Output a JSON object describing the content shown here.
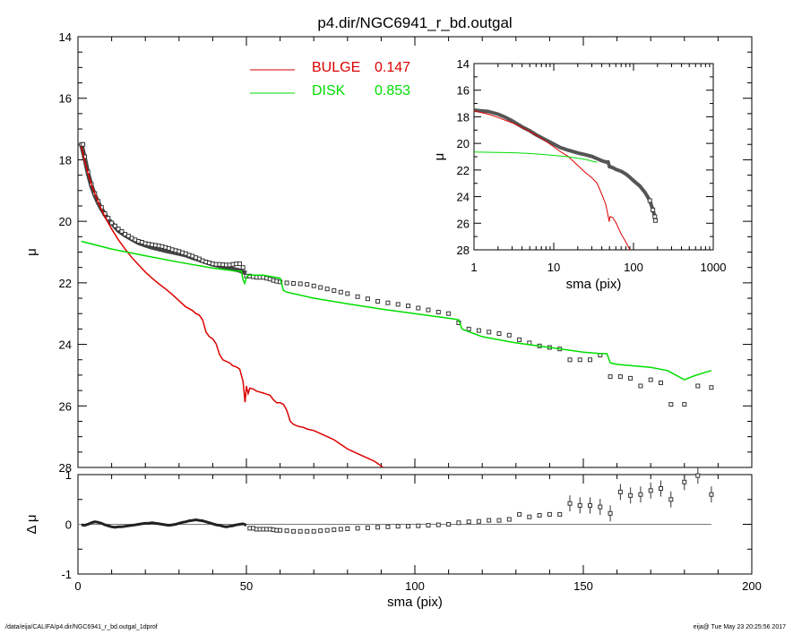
{
  "header": {
    "title": "p4.dir/NGC6941_r_bd.outgal"
  },
  "footer": {
    "path": "/data/eija/CALIFA/p4.dir/NGC6941_r_bd.outgal_1dprof",
    "stamp": "eija@  Tue May 23 20:25:56 2017"
  },
  "chart_data": [
    {
      "panel": "main",
      "type": "line",
      "title": "p4.dir/NGC6941_r_bd.outgal",
      "ylabel": "μ",
      "xlabel": "",
      "xlim": [
        0,
        200
      ],
      "ylim": [
        28,
        14
      ],
      "yaxis_inverted": true,
      "x_ticks": [
        0,
        50,
        100,
        150,
        200
      ],
      "y_ticks": [
        14,
        16,
        18,
        20,
        22,
        24,
        26,
        28
      ],
      "legend": {
        "position": "top-center",
        "items": [
          {
            "label": "BULGE",
            "value": "0.147",
            "color": "#dd0000"
          },
          {
            "label": "DISK",
            "value": "0.853",
            "color": "#00dd00"
          }
        ]
      },
      "series": [
        {
          "name": "BULGE",
          "kind": "line",
          "color": "#dd0000",
          "x": [
            1,
            2,
            3,
            4,
            5,
            6,
            7,
            8,
            9,
            10,
            12,
            14,
            16,
            18,
            20,
            22,
            24,
            26,
            28,
            30,
            32,
            33,
            34,
            35,
            36,
            37,
            38,
            39,
            40,
            41,
            42,
            43,
            44,
            45,
            46,
            47,
            48,
            49,
            49.6,
            50,
            50.5,
            51,
            52,
            53,
            54,
            55,
            56,
            57,
            58,
            59,
            60,
            61,
            62,
            63,
            64,
            65,
            66,
            67,
            68,
            70,
            72,
            74,
            76,
            78,
            80,
            82,
            84,
            86,
            88,
            90,
            91
          ],
          "y": [
            17.55,
            18.05,
            18.45,
            18.8,
            19.1,
            19.38,
            19.62,
            19.85,
            20.05,
            20.25,
            20.6,
            20.9,
            21.18,
            21.42,
            21.65,
            21.85,
            22.03,
            22.2,
            22.38,
            22.58,
            22.78,
            22.84,
            22.9,
            23.0,
            23.05,
            23.2,
            23.6,
            23.75,
            23.82,
            23.98,
            24.32,
            24.5,
            24.55,
            24.6,
            24.7,
            24.73,
            24.8,
            25.2,
            25.88,
            25.35,
            25.6,
            25.42,
            25.45,
            25.52,
            25.55,
            25.58,
            25.62,
            25.65,
            25.8,
            25.9,
            25.9,
            25.95,
            26.15,
            26.5,
            26.6,
            26.65,
            26.68,
            26.7,
            26.75,
            26.8,
            26.9,
            27.0,
            27.1,
            27.25,
            27.4,
            27.5,
            27.6,
            27.7,
            27.8,
            27.95,
            28.05
          ]
        },
        {
          "name": "DISK",
          "kind": "line",
          "color": "#00dd00",
          "x": [
            1,
            10,
            20,
            30,
            40,
            47,
            48.5,
            49,
            49.5,
            50,
            50.5,
            51,
            55,
            60,
            61,
            62,
            70,
            80,
            90,
            100,
            110,
            113,
            114,
            115,
            120,
            130,
            140,
            150,
            155,
            157,
            158,
            160,
            170,
            175,
            180,
            183,
            185,
            188
          ],
          "y": [
            20.65,
            20.9,
            21.12,
            21.33,
            21.52,
            21.62,
            21.62,
            21.9,
            22.02,
            21.82,
            21.75,
            21.75,
            21.75,
            21.85,
            22.25,
            22.3,
            22.5,
            22.68,
            22.85,
            23.0,
            23.15,
            23.2,
            23.5,
            23.55,
            23.75,
            23.95,
            24.1,
            24.25,
            24.3,
            24.3,
            24.6,
            24.65,
            24.75,
            24.85,
            25.15,
            25.02,
            24.95,
            24.85
          ]
        },
        {
          "name": "",
          "kind": "model",
          "color": "#555555",
          "x": [
            1,
            2,
            3,
            4,
            5,
            6,
            7,
            8,
            9,
            10,
            12,
            14,
            16,
            18,
            20,
            22,
            24,
            26,
            28,
            30,
            32,
            34,
            36,
            38,
            40,
            42,
            44,
            46,
            48,
            49,
            50
          ],
          "y": [
            17.5,
            17.95,
            18.45,
            18.85,
            19.15,
            19.4,
            19.6,
            19.78,
            19.95,
            20.05,
            20.3,
            20.45,
            20.58,
            20.7,
            20.78,
            20.85,
            20.9,
            20.96,
            21.0,
            21.05,
            21.1,
            21.18,
            21.25,
            21.33,
            21.4,
            21.45,
            21.5,
            21.55,
            21.6,
            21.65,
            21.68
          ]
        },
        {
          "name": "",
          "kind": "observed",
          "color": "#000000",
          "x": [
            1,
            1.5,
            2,
            3,
            4,
            5,
            6,
            7,
            8,
            9,
            10,
            11,
            12,
            13,
            14,
            15,
            16,
            17,
            18,
            19,
            20,
            21,
            22,
            23,
            24,
            25,
            26,
            27,
            28,
            29,
            30,
            31,
            32,
            33,
            34,
            35,
            36,
            37,
            38,
            39,
            40,
            41,
            42,
            43,
            44,
            45,
            46,
            47,
            48,
            49,
            50,
            51,
            52,
            53,
            54,
            55,
            56,
            57,
            58,
            59,
            60,
            62,
            64,
            66,
            68,
            70,
            72,
            74,
            76,
            78,
            80,
            83,
            86,
            89,
            92,
            95,
            98,
            101,
            104,
            107,
            110,
            113,
            116,
            119,
            122,
            125,
            128,
            131,
            134,
            137,
            140,
            143,
            146,
            149,
            152,
            155,
            158,
            161,
            164,
            167,
            170,
            173,
            176,
            180,
            184,
            188
          ],
          "y": [
            17.5,
            17.5,
            17.9,
            18.4,
            18.8,
            19.1,
            19.35,
            19.55,
            19.75,
            19.9,
            20.05,
            20.15,
            20.25,
            20.33,
            20.42,
            20.48,
            20.55,
            20.6,
            20.65,
            20.68,
            20.72,
            20.74,
            20.76,
            20.78,
            20.8,
            20.82,
            20.85,
            20.88,
            20.92,
            20.95,
            20.98,
            21.02,
            21.05,
            21.1,
            21.13,
            21.18,
            21.22,
            21.28,
            21.32,
            21.35,
            21.38,
            21.4,
            21.4,
            21.41,
            21.42,
            21.42,
            21.4,
            21.38,
            21.38,
            21.5,
            21.78,
            21.78,
            21.8,
            21.82,
            21.82,
            21.82,
            21.85,
            21.88,
            21.92,
            21.95,
            21.97,
            22.0,
            22.02,
            22.03,
            22.05,
            22.1,
            22.15,
            22.2,
            22.25,
            22.3,
            22.35,
            22.45,
            22.52,
            22.6,
            22.65,
            22.7,
            22.75,
            22.82,
            22.88,
            22.95,
            23.0,
            23.3,
            23.5,
            23.55,
            23.6,
            23.65,
            23.7,
            23.85,
            23.95,
            24.05,
            24.1,
            24.15,
            24.5,
            24.5,
            24.5,
            24.35,
            25.05,
            25.05,
            25.1,
            25.35,
            25.15,
            25.25,
            25.95,
            25.95,
            25.35,
            25.4
          ]
        }
      ]
    },
    {
      "panel": "inset",
      "type": "line",
      "xlabel": "sma (pix)",
      "ylabel": "μ",
      "xscale": "log",
      "xlim": [
        1,
        1000
      ],
      "ylim": [
        28,
        14
      ],
      "yaxis_inverted": true,
      "x_ticks": [
        1,
        10,
        100,
        1000
      ],
      "y_ticks": [
        14,
        16,
        18,
        20,
        22,
        24,
        26,
        28
      ],
      "series": [
        {
          "name": "",
          "kind": "observed",
          "color": "#000000",
          "x": [
            1,
            1.2,
            1.5,
            2,
            2.5,
            3,
            4,
            5,
            6,
            8,
            10,
            12,
            15,
            20,
            25,
            30,
            35,
            40,
            45,
            48,
            50,
            55,
            60,
            70,
            80,
            90,
            100,
            120,
            140,
            160,
            175,
            185,
            188
          ],
          "y": [
            17.5,
            17.55,
            17.6,
            17.8,
            18.05,
            18.3,
            18.75,
            19.05,
            19.35,
            19.75,
            20.05,
            20.3,
            20.5,
            20.72,
            20.85,
            20.98,
            21.15,
            21.3,
            21.4,
            21.4,
            21.75,
            21.82,
            21.95,
            22.1,
            22.3,
            22.55,
            22.8,
            23.2,
            23.7,
            24.3,
            25.0,
            25.5,
            25.8
          ]
        },
        {
          "name": "BULGE",
          "kind": "line",
          "color": "#dd0000",
          "x": [
            1,
            1.5,
            2,
            3,
            4,
            5,
            6,
            7,
            8,
            10,
            12,
            15,
            20,
            25,
            30,
            35,
            40,
            45,
            49.6,
            50.5,
            55,
            60,
            70,
            80,
            91
          ],
          "y": [
            17.55,
            17.8,
            18.05,
            18.45,
            18.8,
            19.1,
            19.38,
            19.62,
            19.85,
            20.25,
            20.6,
            20.95,
            21.65,
            22.2,
            22.58,
            23.0,
            23.82,
            24.6,
            25.88,
            25.5,
            25.58,
            25.95,
            26.8,
            27.4,
            28.05
          ]
        },
        {
          "name": "DISK",
          "kind": "line",
          "color": "#00dd00",
          "x": [
            1,
            2,
            3,
            5,
            10,
            15,
            20,
            25,
            30,
            35
          ],
          "y": [
            20.65,
            20.68,
            20.7,
            20.76,
            20.9,
            21.0,
            21.12,
            21.2,
            21.33,
            21.42
          ]
        }
      ]
    },
    {
      "panel": "residual",
      "type": "scatter",
      "xlabel": "sma (pix)",
      "ylabel": "Δ μ",
      "xlim": [
        0,
        200
      ],
      "ylim": [
        -1,
        1
      ],
      "x_ticks": [
        0,
        50,
        100,
        150,
        200
      ],
      "y_ticks": [
        -1,
        0,
        1
      ],
      "reference_line": 0,
      "series": [
        {
          "name": "",
          "kind": "dense",
          "color": "#000000",
          "x": [
            1,
            2,
            3,
            4,
            5,
            6,
            7,
            8,
            9,
            10,
            11,
            12,
            13,
            14,
            15,
            16,
            17,
            18,
            19,
            20,
            21,
            22,
            23,
            24,
            25,
            26,
            27,
            28,
            29,
            30,
            31,
            32,
            33,
            34,
            35,
            36,
            37,
            38,
            39,
            40,
            41,
            42,
            43,
            44,
            45,
            46,
            47,
            48,
            49,
            50
          ],
          "y": [
            -0.01,
            -0.02,
            0.0,
            0.03,
            0.05,
            0.04,
            0.02,
            -0.01,
            -0.03,
            -0.05,
            -0.06,
            -0.05,
            -0.05,
            -0.04,
            -0.03,
            -0.02,
            -0.01,
            0.0,
            0.01,
            0.02,
            0.02,
            0.03,
            0.02,
            0.01,
            0.0,
            -0.01,
            -0.02,
            -0.01,
            0.0,
            0.02,
            0.04,
            0.05,
            0.07,
            0.08,
            0.09,
            0.08,
            0.07,
            0.05,
            0.03,
            0.01,
            -0.01,
            -0.02,
            -0.04,
            -0.05,
            -0.04,
            -0.03,
            -0.01,
            0.0,
            0.01,
            -0.02
          ]
        },
        {
          "name": "",
          "kind": "points",
          "color": "#000000",
          "x": [
            51,
            52,
            53,
            54,
            55,
            56,
            57,
            58,
            59,
            60,
            62,
            64,
            66,
            68,
            70,
            72,
            74,
            76,
            78,
            80,
            83,
            86,
            89,
            92,
            95,
            98,
            101,
            104,
            107,
            110,
            113,
            116,
            119,
            122,
            125,
            128,
            131,
            134,
            137,
            140,
            143,
            146,
            149,
            152,
            155,
            158,
            161,
            164,
            167,
            170,
            173,
            176,
            180,
            184,
            188
          ],
          "y": [
            -0.08,
            -0.08,
            -0.1,
            -0.1,
            -0.1,
            -0.1,
            -0.1,
            -0.11,
            -0.12,
            -0.12,
            -0.13,
            -0.14,
            -0.14,
            -0.14,
            -0.14,
            -0.13,
            -0.12,
            -0.11,
            -0.1,
            -0.09,
            -0.08,
            -0.07,
            -0.06,
            -0.05,
            -0.04,
            -0.04,
            -0.03,
            -0.02,
            -0.01,
            0.0,
            0.03,
            0.05,
            0.06,
            0.08,
            0.08,
            0.1,
            0.2,
            0.15,
            0.18,
            0.2,
            0.2,
            0.42,
            0.38,
            0.38,
            0.35,
            0.22,
            0.65,
            0.58,
            0.6,
            0.68,
            0.72,
            0.5,
            0.85,
            0.98,
            0.6
          ]
        }
      ]
    }
  ]
}
